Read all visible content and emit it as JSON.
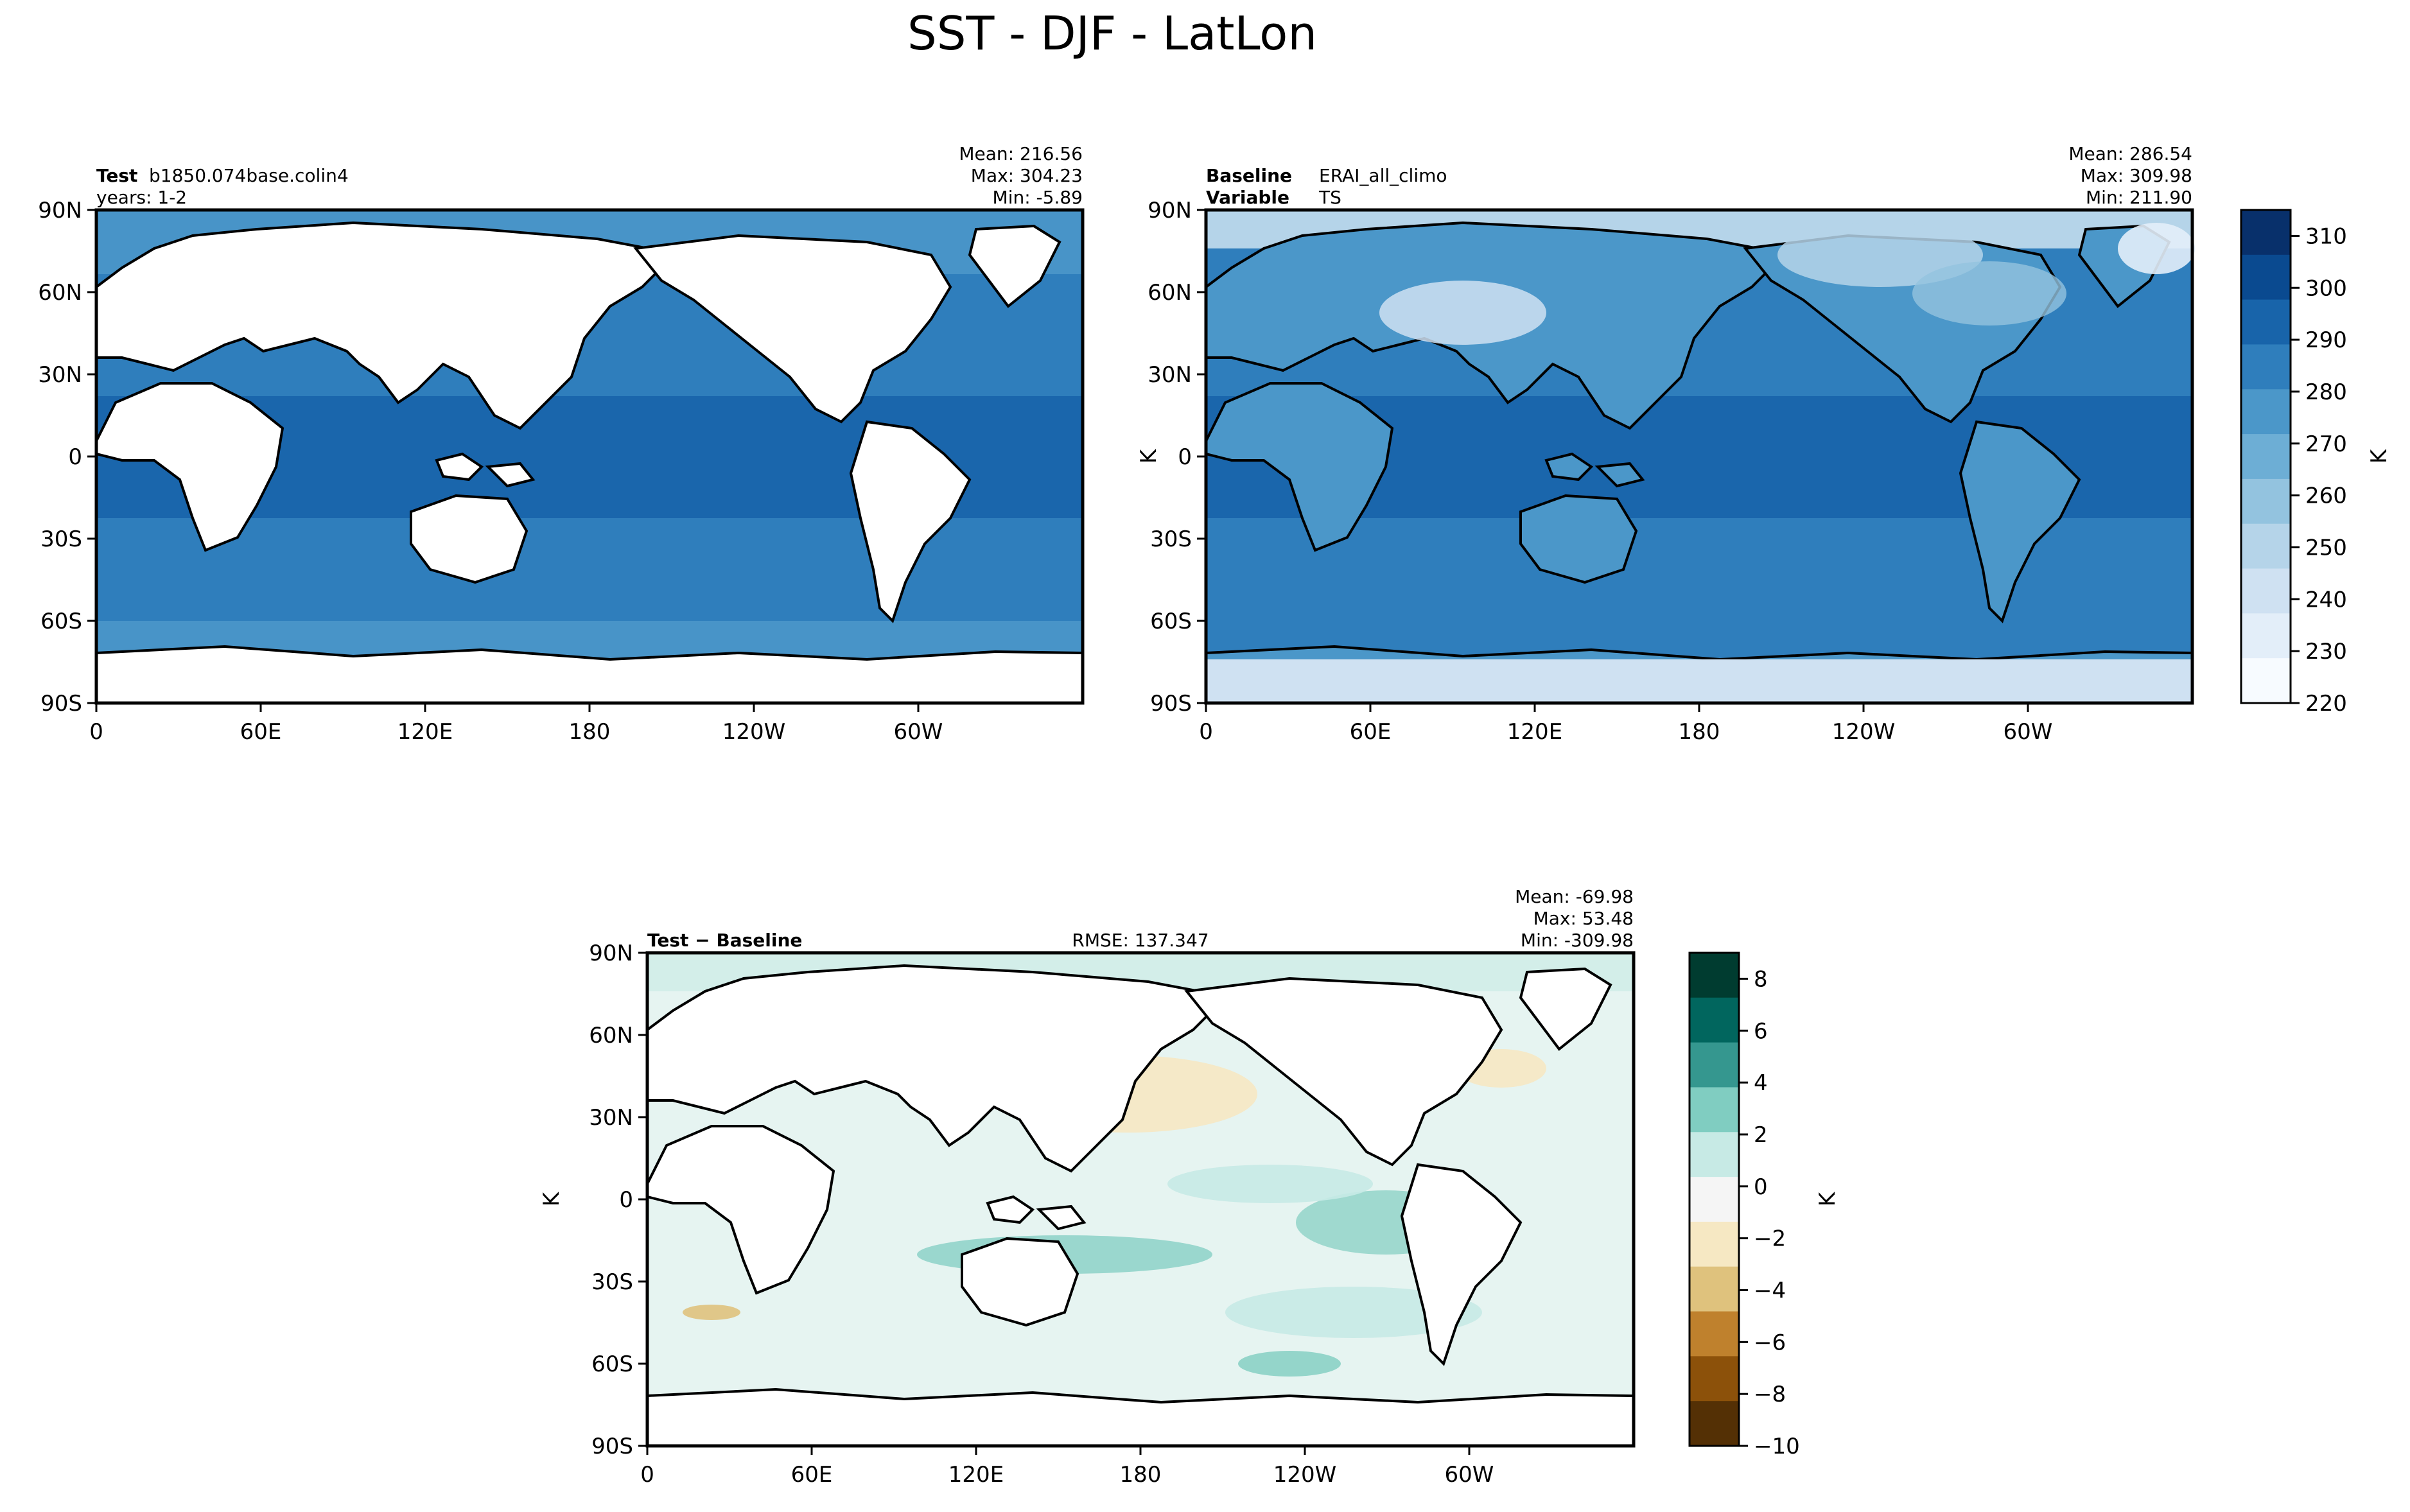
{
  "figure": {
    "title": "SST - DJF - LatLon"
  },
  "colors": {
    "ocean_seq": [
      "#f7fbff",
      "#e3eef9",
      "#cfe1f2",
      "#b5d4e9",
      "#93c3df",
      "#6daed5",
      "#4b97c9",
      "#2f7ebc",
      "#1864aa",
      "#0a4a90",
      "#08306b"
    ],
    "diff_div": [
      "#543005",
      "#8c510a",
      "#bf812d",
      "#dfc27d",
      "#f6e8c3",
      "#f5f5f5",
      "#c7eae5",
      "#80cdc1",
      "#35978f",
      "#01665e",
      "#003c30"
    ],
    "land": "#ffffff",
    "coast": "#000000"
  },
  "chart_data": [
    {
      "type": "heatmap",
      "id": "test",
      "left_label_bold": "Test",
      "left_label_value": "b1850.074base.colin4",
      "left_label_line2": "years: 1-2",
      "stats": [
        "Mean: 216.56",
        "Max: 304.23",
        "Min: -5.89"
      ],
      "xticks": [
        "0",
        "60E",
        "120E",
        "180",
        "120W",
        "60W"
      ],
      "yticks": [
        "90N",
        "60N",
        "30N",
        "0",
        "30S",
        "60S",
        "90S"
      ],
      "xlim": [
        0,
        360
      ],
      "ylim": [
        -90,
        90
      ],
      "land_masked": true
    },
    {
      "type": "heatmap",
      "id": "baseline",
      "left_label_bold": "Baseline",
      "left_label_value": "ERAI_all_climo",
      "left_label_bold2": "Variable",
      "left_label_value2": "TS",
      "stats": [
        "Mean: 286.54",
        "Max: 309.98",
        "Min: 211.90"
      ],
      "xticks": [
        "0",
        "60E",
        "120E",
        "180",
        "120W",
        "60W"
      ],
      "yticks": [
        "90N",
        "60N",
        "30N",
        "0",
        "30S",
        "60S",
        "90S"
      ],
      "ylabel": "K",
      "xlim": [
        0,
        360
      ],
      "ylim": [
        -90,
        90
      ],
      "land_masked": false,
      "colorbar": {
        "label": "K",
        "range": [
          220,
          315
        ],
        "ticks": [
          "310",
          "300",
          "290",
          "280",
          "270",
          "260",
          "250",
          "240",
          "230",
          "220"
        ]
      }
    },
    {
      "type": "heatmap",
      "id": "diff",
      "left_label_bold": "Test − Baseline",
      "center_label": "RMSE: 137.347",
      "stats": [
        "Mean: -69.98",
        "Max: 53.48",
        "Min: -309.98"
      ],
      "xticks": [
        "0",
        "60E",
        "120E",
        "180",
        "120W",
        "60W"
      ],
      "yticks": [
        "90N",
        "60N",
        "30N",
        "0",
        "30S",
        "60S",
        "90S"
      ],
      "ylabel": "K",
      "xlim": [
        0,
        360
      ],
      "ylim": [
        -90,
        90
      ],
      "land_masked": true,
      "colorbar": {
        "label": "K",
        "range": [
          -10,
          9
        ],
        "ticks": [
          "8",
          "6",
          "4",
          "2",
          "0",
          "−2",
          "−4",
          "−6",
          "−8",
          "−10"
        ]
      }
    }
  ]
}
